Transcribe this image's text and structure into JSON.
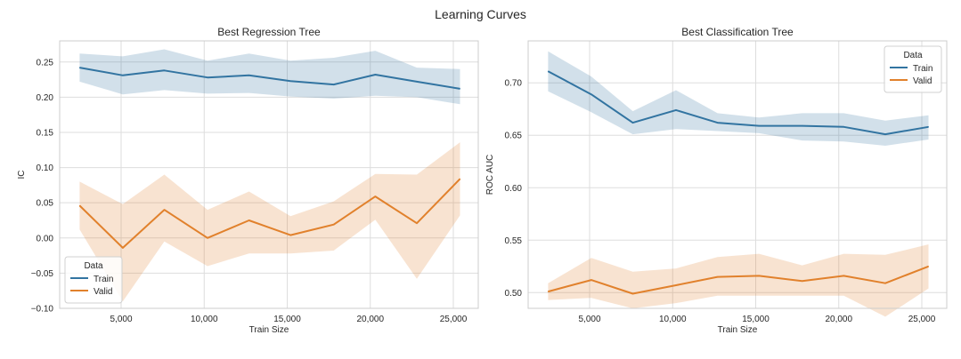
{
  "figure": {
    "title": "Learning Curves"
  },
  "colors": {
    "train": "#3274a1",
    "valid": "#e1812c",
    "grid": "#dddddd",
    "axis_bg": "#ffffff",
    "spine": "#cccccc",
    "text": "#262626"
  },
  "chart_data": [
    {
      "type": "line",
      "title": "Best Regression Tree",
      "xlabel": "Train Size",
      "ylabel": "IC",
      "xlim": [
        1300,
        26500
      ],
      "ylim": [
        -0.1,
        0.28
      ],
      "xticks": [
        5000,
        10000,
        15000,
        20000,
        25000
      ],
      "xtick_labels": [
        "5,000",
        "10,000",
        "15,000",
        "20,000",
        "25,000"
      ],
      "yticks": [
        -0.1,
        -0.05,
        0.0,
        0.05,
        0.1,
        0.15,
        0.2,
        0.25
      ],
      "ytick_labels": [
        "−0.10",
        "−0.05",
        "0.00",
        "0.05",
        "0.10",
        "0.15",
        "0.20",
        "0.25"
      ],
      "grid": true,
      "legend": {
        "title": "Data",
        "placement": "lower-left"
      },
      "x": [
        2500,
        5100,
        7600,
        10200,
        12700,
        15200,
        17800,
        20300,
        22800,
        25400
      ],
      "series": [
        {
          "name": "Train",
          "values": [
            0.242,
            0.231,
            0.238,
            0.228,
            0.231,
            0.223,
            0.218,
            0.232,
            0.222,
            0.212
          ],
          "lower": [
            0.222,
            0.204,
            0.21,
            0.205,
            0.206,
            0.201,
            0.198,
            0.202,
            0.2,
            0.19
          ],
          "upper": [
            0.262,
            0.258,
            0.268,
            0.252,
            0.262,
            0.252,
            0.256,
            0.266,
            0.242,
            0.24
          ]
        },
        {
          "name": "Valid",
          "values": [
            0.046,
            -0.014,
            0.04,
            0.0,
            0.025,
            0.004,
            0.019,
            0.059,
            0.021,
            0.084
          ],
          "lower": [
            0.012,
            -0.09,
            -0.005,
            -0.04,
            -0.022,
            -0.022,
            -0.018,
            0.026,
            -0.058,
            0.032
          ],
          "upper": [
            0.08,
            0.048,
            0.09,
            0.04,
            0.066,
            0.031,
            0.052,
            0.091,
            0.09,
            0.136
          ]
        }
      ]
    },
    {
      "type": "line",
      "title": "Best Classification Tree",
      "xlabel": "Train Size",
      "ylabel": "ROC AUC",
      "xlim": [
        1300,
        26500
      ],
      "ylim": [
        0.485,
        0.74
      ],
      "xticks": [
        5000,
        10000,
        15000,
        20000,
        25000
      ],
      "xtick_labels": [
        "5,000",
        "10,000",
        "15,000",
        "20,000",
        "25,000"
      ],
      "yticks": [
        0.5,
        0.55,
        0.6,
        0.65,
        0.7
      ],
      "ytick_labels": [
        "0.50",
        "0.55",
        "0.60",
        "0.65",
        "0.70"
      ],
      "grid": true,
      "legend": {
        "title": "Data",
        "placement": "top-right"
      },
      "x": [
        2500,
        5100,
        7600,
        10200,
        12700,
        15200,
        17800,
        20300,
        22800,
        25400
      ],
      "series": [
        {
          "name": "Train",
          "values": [
            0.711,
            0.689,
            0.662,
            0.674,
            0.662,
            0.659,
            0.659,
            0.658,
            0.651,
            0.658
          ],
          "lower": [
            0.692,
            0.672,
            0.651,
            0.656,
            0.654,
            0.652,
            0.645,
            0.644,
            0.64,
            0.646
          ],
          "upper": [
            0.73,
            0.706,
            0.673,
            0.693,
            0.671,
            0.667,
            0.671,
            0.671,
            0.664,
            0.669
          ]
        },
        {
          "name": "Valid",
          "values": [
            0.501,
            0.512,
            0.499,
            0.507,
            0.515,
            0.516,
            0.511,
            0.516,
            0.509,
            0.525
          ],
          "lower": [
            0.493,
            0.495,
            0.485,
            0.49,
            0.497,
            0.497,
            0.497,
            0.497,
            0.477,
            0.504
          ],
          "upper": [
            0.509,
            0.533,
            0.52,
            0.523,
            0.534,
            0.537,
            0.526,
            0.537,
            0.536,
            0.546
          ]
        }
      ]
    }
  ]
}
